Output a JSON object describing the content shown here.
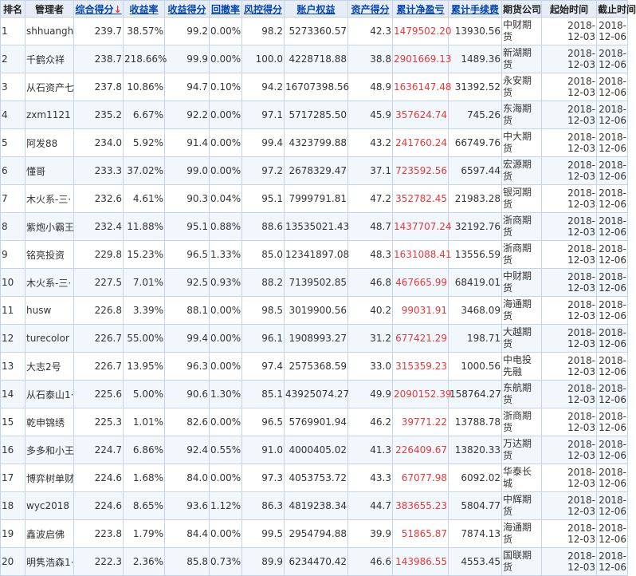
{
  "headers": {
    "rank": "排名",
    "manager": "管理者",
    "score": "综合得分",
    "score_sort_icon": "↓",
    "return_rate": "收益率",
    "return_score": "收益得分",
    "drawdown": "回撤率",
    "risk_score": "风控得分",
    "equity": "账户权益",
    "asset_score": "资产得分",
    "net_profit": "累计净盈亏",
    "fees": "累计手续费",
    "company": "期货公司",
    "start": "起始时间",
    "end": "截止时间"
  },
  "accent_colors": {
    "profit": "#e4393c",
    "link": "#0645ad",
    "header_bg": "#e6edf7",
    "stripe": "#f2f7fc"
  },
  "rows": [
    {
      "rank": "1",
      "manager": "shhuangh",
      "score": "239.7",
      "return_rate": "38.57%",
      "return_score": "99.2",
      "drawdown": "0.00%",
      "risk_score": "98.2",
      "equity": "5273360.57",
      "asset_score": "42.3",
      "net_profit": "1479502.20",
      "fees": "13930.56",
      "company": "中财期货",
      "start_y": "2018-",
      "start_md": "12-03",
      "end_y": "2018-",
      "end_md": "12-06"
    },
    {
      "rank": "2",
      "manager": "千鹤众祥",
      "score": "238.7",
      "return_rate": "218.66%",
      "return_score": "99.9",
      "drawdown": "0.00%",
      "risk_score": "100.0",
      "equity": "4228718.88",
      "asset_score": "38.8",
      "net_profit": "2901669.13",
      "fees": "1489.36",
      "company": "新湖期货",
      "start_y": "2018-",
      "start_md": "12-03",
      "end_y": "2018-",
      "end_md": "12-06"
    },
    {
      "rank": "3",
      "manager": "从石资产七",
      "score": "237.8",
      "return_rate": "10.86%",
      "return_score": "94.7",
      "drawdown": "0.10%",
      "risk_score": "94.2",
      "equity": "16707398.56",
      "asset_score": "48.9",
      "net_profit": "1636147.48",
      "fees": "31392.52",
      "company": "永安期货",
      "start_y": "2018-",
      "start_md": "12-03",
      "end_y": "2018-",
      "end_md": "12-06"
    },
    {
      "rank": "4",
      "manager": "zxm1121",
      "score": "235.2",
      "return_rate": "6.67%",
      "return_score": "92.2",
      "drawdown": "0.00%",
      "risk_score": "97.1",
      "equity": "5717285.50",
      "asset_score": "45.9",
      "net_profit": "357624.74",
      "fees": "745.26",
      "company": "东海期货",
      "start_y": "2018-",
      "start_md": "12-03",
      "end_y": "2018-",
      "end_md": "12-06"
    },
    {
      "rank": "5",
      "manager": "阿发88",
      "score": "234.0",
      "return_rate": "5.92%",
      "return_score": "91.4",
      "drawdown": "0.00%",
      "risk_score": "99.4",
      "equity": "4323799.88",
      "asset_score": "43.2",
      "net_profit": "241760.24",
      "fees": "66749.76",
      "company": "中大期货",
      "start_y": "2018-",
      "start_md": "12-03",
      "end_y": "2018-",
      "end_md": "12-06"
    },
    {
      "rank": "6",
      "manager": "懂哥",
      "score": "233.3",
      "return_rate": "37.02%",
      "return_score": "99.0",
      "drawdown": "0.00%",
      "risk_score": "97.2",
      "equity": "2678329.47",
      "asset_score": "37.1",
      "net_profit": "723592.56",
      "fees": "6597.44",
      "company": "宏源期货",
      "start_y": "2018-",
      "start_md": "12-03",
      "end_y": "2018-",
      "end_md": "12-06"
    },
    {
      "rank": "7",
      "manager": "木火系-三·",
      "score": "232.6",
      "return_rate": "4.61%",
      "return_score": "90.3",
      "drawdown": "0.04%",
      "risk_score": "95.1",
      "equity": "7999791.81",
      "asset_score": "47.2",
      "net_profit": "352782.45",
      "fees": "21983.28",
      "company": "银河期货",
      "start_y": "2018-",
      "start_md": "12-03",
      "end_y": "2018-",
      "end_md": "12-06"
    },
    {
      "rank": "8",
      "manager": "紫炮小霸王",
      "score": "232.4",
      "return_rate": "11.88%",
      "return_score": "95.1",
      "drawdown": "0.88%",
      "risk_score": "88.6",
      "equity": "13535021.43",
      "asset_score": "48.7",
      "net_profit": "1437707.24",
      "fees": "32192.76",
      "company": "浙商期货",
      "start_y": "2018-",
      "start_md": "12-03",
      "end_y": "2018-",
      "end_md": "12-06"
    },
    {
      "rank": "9",
      "manager": "铭亮投资",
      "score": "229.8",
      "return_rate": "15.23%",
      "return_score": "96.5",
      "drawdown": "1.33%",
      "risk_score": "85.0",
      "equity": "12341897.08",
      "asset_score": "48.3",
      "net_profit": "1631088.41",
      "fees": "13556.59",
      "company": "浙商期货",
      "start_y": "2018-",
      "start_md": "12-03",
      "end_y": "2018-",
      "end_md": "12-06"
    },
    {
      "rank": "10",
      "manager": "木火系-三·",
      "score": "227.5",
      "return_rate": "7.01%",
      "return_score": "92.5",
      "drawdown": "0.93%",
      "risk_score": "88.2",
      "equity": "7139502.85",
      "asset_score": "46.8",
      "net_profit": "467665.99",
      "fees": "68419.01",
      "company": "中财期货",
      "start_y": "2018-",
      "start_md": "12-03",
      "end_y": "2018-",
      "end_md": "12-06"
    },
    {
      "rank": "11",
      "manager": "husw",
      "score": "226.8",
      "return_rate": "3.39%",
      "return_score": "88.1",
      "drawdown": "0.00%",
      "risk_score": "98.5",
      "equity": "3019900.56",
      "asset_score": "40.2",
      "net_profit": "99031.91",
      "fees": "3468.09",
      "company": "海通期货",
      "start_y": "2018-",
      "start_md": "12-03",
      "end_y": "2018-",
      "end_md": "12-06"
    },
    {
      "rank": "12",
      "manager": "turecolor",
      "score": "226.7",
      "return_rate": "55.00%",
      "return_score": "99.4",
      "drawdown": "0.00%",
      "risk_score": "96.1",
      "equity": "1908993.27",
      "asset_score": "31.2",
      "net_profit": "677421.29",
      "fees": "198.71",
      "company": "大越期货",
      "start_y": "2018-",
      "start_md": "12-03",
      "end_y": "2018-",
      "end_md": "12-06"
    },
    {
      "rank": "13",
      "manager": "大志2号",
      "score": "226.7",
      "return_rate": "13.95%",
      "return_score": "96.3",
      "drawdown": "0.00%",
      "risk_score": "97.4",
      "equity": "2575368.59",
      "asset_score": "33.0",
      "net_profit": "315359.23",
      "fees": "1000.56",
      "company": "中电投先融",
      "start_y": "2018-",
      "start_md": "12-03",
      "end_y": "2018-",
      "end_md": "12-06"
    },
    {
      "rank": "14",
      "manager": "从石泰山1·",
      "score": "225.6",
      "return_rate": "5.00%",
      "return_score": "90.6",
      "drawdown": "1.30%",
      "risk_score": "85.1",
      "equity": "43925074.27",
      "asset_score": "49.9",
      "net_profit": "2090152.39",
      "fees": "158764.27",
      "company": "东航期货",
      "start_y": "2018-",
      "start_md": "12-03",
      "end_y": "2018-",
      "end_md": "12-06"
    },
    {
      "rank": "15",
      "manager": "乾申锦绣",
      "score": "225.3",
      "return_rate": "1.01%",
      "return_score": "82.6",
      "drawdown": "0.00%",
      "risk_score": "96.5",
      "equity": "5769901.94",
      "asset_score": "46.2",
      "net_profit": "39771.22",
      "fees": "13788.78",
      "company": "浙商期货",
      "start_y": "2018-",
      "start_md": "12-03",
      "end_y": "2018-",
      "end_md": "12-06"
    },
    {
      "rank": "16",
      "manager": "多多和小王",
      "score": "224.7",
      "return_rate": "6.86%",
      "return_score": "92.4",
      "drawdown": "0.55%",
      "risk_score": "91.0",
      "equity": "4000405.02",
      "asset_score": "41.3",
      "net_profit": "226409.67",
      "fees": "13820.33",
      "company": "万达期货",
      "start_y": "2018-",
      "start_md": "12-03",
      "end_y": "2018-",
      "end_md": "12-06"
    },
    {
      "rank": "17",
      "manager": "博弈树单财",
      "score": "224.6",
      "return_rate": "1.68%",
      "return_score": "84.0",
      "drawdown": "0.00%",
      "risk_score": "97.3",
      "equity": "4053753.72",
      "asset_score": "43.3",
      "net_profit": "67077.98",
      "fees": "6092.02",
      "company": "华泰长城",
      "start_y": "2018-",
      "start_md": "12-03",
      "end_y": "2018-",
      "end_md": "12-06"
    },
    {
      "rank": "18",
      "manager": "wyc2018",
      "score": "224.6",
      "return_rate": "8.65%",
      "return_score": "93.6",
      "drawdown": "1.12%",
      "risk_score": "86.3",
      "equity": "4819238.34",
      "asset_score": "44.7",
      "net_profit": "383655.23",
      "fees": "5804.77",
      "company": "中辉期货",
      "start_y": "2018-",
      "start_md": "12-03",
      "end_y": "2018-",
      "end_md": "12-06"
    },
    {
      "rank": "19",
      "manager": "鑫波启佛",
      "score": "223.8",
      "return_rate": "1.79%",
      "return_score": "84.4",
      "drawdown": "0.00%",
      "risk_score": "99.5",
      "equity": "2954794.88",
      "asset_score": "39.9",
      "net_profit": "51865.87",
      "fees": "7874.13",
      "company": "海通期货",
      "start_y": "2018-",
      "start_md": "12-03",
      "end_y": "2018-",
      "end_md": "12-06"
    },
    {
      "rank": "20",
      "manager": "明隽浩森1·",
      "score": "222.3",
      "return_rate": "2.36%",
      "return_score": "85.8",
      "drawdown": "0.73%",
      "risk_score": "89.9",
      "equity": "6234470.42",
      "asset_score": "46.6",
      "net_profit": "143986.55",
      "fees": "4553.45",
      "company": "国联期货",
      "start_y": "2018-",
      "start_md": "12-03",
      "end_y": "2018-",
      "end_md": "12-06"
    }
  ]
}
